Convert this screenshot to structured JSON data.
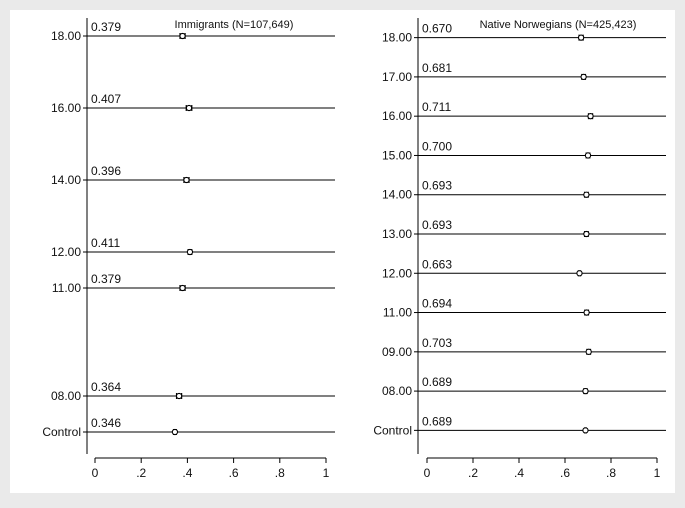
{
  "chart_data": [
    {
      "type": "scatter",
      "title": "Immigrants (N=107,649)",
      "categories": [
        "18.00",
        "16.00",
        "14.00",
        "12.00",
        "11.00",
        "08.00",
        "Control"
      ],
      "category_positions": [
        18,
        16,
        14,
        12,
        11,
        8,
        7
      ],
      "values": [
        0.379,
        0.407,
        0.396,
        0.411,
        0.379,
        0.364,
        0.346
      ],
      "value_labels": [
        "0.379",
        "0.407",
        "0.396",
        "0.411",
        "0.379",
        "0.364",
        "0.346"
      ],
      "ci_halfwidth": [
        0.011,
        0.012,
        0.011,
        0.008,
        0.011,
        0.011,
        0.006
      ],
      "xlim": [
        0,
        1
      ],
      "xticks": [
        "0",
        ".2",
        ".4",
        ".6",
        ".8",
        "1"
      ],
      "grid": false,
      "marker": "circle with confidence interval whiskers"
    },
    {
      "type": "scatter",
      "title": "Native Norwegians (N=425,423)",
      "categories": [
        "18.00",
        "17.00",
        "16.00",
        "15.00",
        "14.00",
        "13.00",
        "12.00",
        "11.00",
        "09.00",
        "08.00",
        "Control"
      ],
      "category_positions": [
        18,
        17,
        16,
        15,
        14,
        13,
        12,
        11,
        10,
        9,
        8
      ],
      "values": [
        0.67,
        0.681,
        0.711,
        0.7,
        0.693,
        0.693,
        0.663,
        0.694,
        0.703,
        0.689,
        0.689
      ],
      "value_labels": [
        "0.670",
        "0.681",
        "0.711",
        "0.700",
        "0.693",
        "0.693",
        "0.663",
        "0.694",
        "0.703",
        "0.689",
        "0.689"
      ],
      "ci_halfwidth": [
        0.009,
        0.008,
        0.009,
        0.008,
        0.008,
        0.008,
        0.005,
        0.008,
        0.008,
        0.007,
        0.004
      ],
      "xlim": [
        0,
        1
      ],
      "xticks": [
        "0",
        ".2",
        ".4",
        ".6",
        ".8",
        "1"
      ],
      "grid": false,
      "marker": "circle with confidence interval whiskers"
    }
  ]
}
